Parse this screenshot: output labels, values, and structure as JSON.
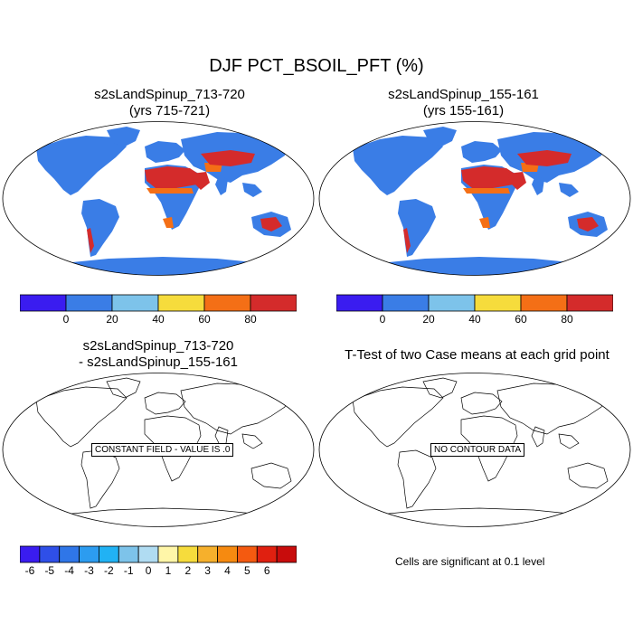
{
  "title": "DJF PCT_BSOIL_PFT (%)",
  "panels": [
    {
      "title_line1": "s2sLandSpinup_713-720",
      "title_line2": "(yrs 715-721)"
    },
    {
      "title_line1": "s2sLandSpinup_155-161",
      "title_line2": "(yrs 155-161)"
    },
    {
      "title_line1": "s2sLandSpinup_713-720",
      "title_line2": "- s2sLandSpinup_155-161",
      "note": "CONSTANT FIELD - VALUE IS .0"
    },
    {
      "title_line1": "T-Test of two Case means at each grid point",
      "title_line2": "",
      "note": "NO CONTOUR DATA"
    }
  ],
  "colorbar_top": {
    "colors": [
      "#3a1cf0",
      "#3a7de6",
      "#7dc3ea",
      "#f6dc3c",
      "#f46f16",
      "#d42b2b"
    ],
    "labels": [
      "0",
      "20",
      "40",
      "60",
      "80"
    ]
  },
  "colorbar_bottom": {
    "colors": [
      "#3a1cf0",
      "#2f4fe8",
      "#2f76e8",
      "#2c9cf0",
      "#21b2f4",
      "#7dc3ea",
      "#b0dcf2",
      "#fff6a8",
      "#f6dc3c",
      "#f6b02c",
      "#f68a10",
      "#f45a10",
      "#e02010",
      "#c80c0c"
    ],
    "labels": [
      "-6",
      "-5",
      "-4",
      "-3",
      "-2",
      "-1",
      "0",
      "1",
      "2",
      "3",
      "4",
      "5",
      "6"
    ]
  },
  "significance_note": "Cells are significant at 0.1 level",
  "palette": {
    "ocean": "#ffffff",
    "land": "#3a7de6",
    "desert": "#d42b2b",
    "arid": "#f46f16",
    "semi": "#f6dc3c"
  }
}
